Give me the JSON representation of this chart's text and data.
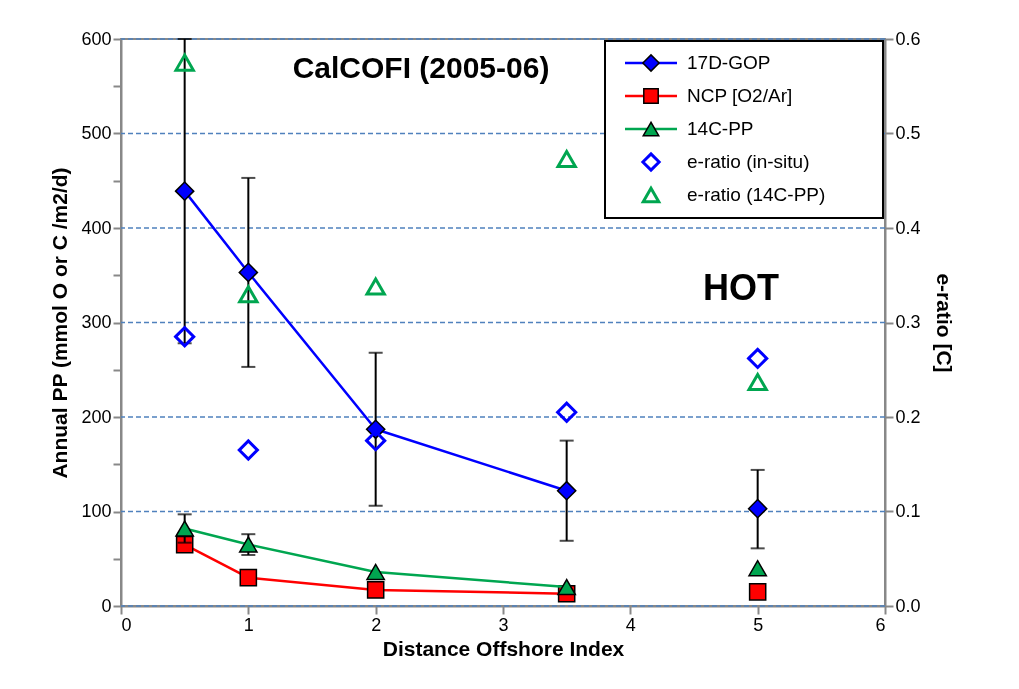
{
  "chart_data": {
    "type": "line",
    "xlabel": "Distance Offshore Index",
    "ylabel": "Annual PP (mmol O or C /m2/d)",
    "y2label": "e-ratio [C]",
    "xlim": [
      0,
      6
    ],
    "xticks": [
      0,
      1,
      2,
      3,
      4,
      5,
      6
    ],
    "ylim": [
      0,
      600
    ],
    "yticks": [
      0,
      {
        "value": 50,
        "label": null
      },
      100,
      {
        "value": 150,
        "label": null
      },
      200,
      {
        "value": 250,
        "label": null
      },
      300,
      {
        "value": 350,
        "label": null
      },
      400,
      {
        "value": 450,
        "label": null
      },
      500,
      {
        "value": 550,
        "label": null
      },
      600
    ],
    "y2lim": [
      0,
      0.6
    ],
    "y2ticks": [
      {
        "value": 0,
        "label": "0.0"
      },
      0.1,
      0.2,
      0.3,
      0.4,
      0.5,
      0.6
    ],
    "grid": "y",
    "legend": "top right",
    "annotations": [
      "CalCOFI (2005-06)",
      "HOT"
    ],
    "series": [
      {
        "name": "17D-GOP",
        "marker": "diamond",
        "color": "#0000ff",
        "x": [
          0.5,
          1,
          2,
          3.5
        ],
        "values": [
          439,
          353,
          187,
          122
        ],
        "errors": [
          [
            278,
            600
          ],
          [
            253,
            453
          ],
          [
            106,
            268
          ],
          [
            69,
            175
          ]
        ]
      },
      {
        "name": "NCP [O2/Ar]",
        "marker": "square",
        "color": "#ff0000",
        "x": [
          0.5,
          1,
          2,
          3.5
        ],
        "values": [
          65,
          30,
          17,
          13
        ]
      },
      {
        "type": "scatter",
        "marker": "square",
        "color": "#ff0000",
        "x": [
          5
        ],
        "values": [
          15
        ]
      },
      {
        "name": "14C-PP",
        "marker": "triangle",
        "color": "#00a650",
        "x": [
          0.5,
          1,
          2,
          3.5
        ],
        "values": [
          82,
          65,
          36,
          20
        ],
        "errors": [
          [
            67,
            97
          ],
          [
            54,
            76
          ],
          null,
          null
        ]
      },
      {
        "type": "scatter",
        "marker": "diamond",
        "color": "#0000ff",
        "x": [
          5
        ],
        "values": [
          103
        ],
        "errors": [
          [
            61,
            144
          ]
        ]
      },
      {
        "type": "scatter",
        "marker": "triangle",
        "color": "#00a650",
        "x": [
          5
        ],
        "values": [
          40
        ]
      },
      {
        "name": "e-ratio (in-situ)",
        "type": "scatter",
        "axis": "y2",
        "marker": "diamond",
        "color": "#0000ff",
        "x": [
          0.5,
          1,
          2,
          3.5,
          5
        ],
        "values": [
          0.285,
          0.165,
          0.175,
          0.205,
          0.262
        ]
      },
      {
        "name": "e-ratio (14C-PP)",
        "type": "scatter",
        "axis": "y2",
        "marker": "triangle",
        "color": "#00a650",
        "x": [
          0.5,
          1,
          2,
          3.5,
          5
        ],
        "values": [
          0.575,
          0.33,
          0.338,
          0.473,
          0.237
        ]
      }
    ]
  }
}
